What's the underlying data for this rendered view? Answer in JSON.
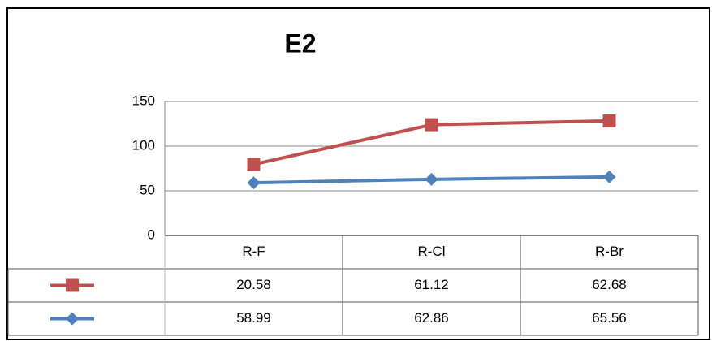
{
  "chart_data": {
    "type": "line",
    "stacked": true,
    "title": "E2",
    "categories": [
      "R-F",
      "R-Cl",
      "R-Br"
    ],
    "series": [
      {
        "color": "#4f81bd",
        "marker": "diamond",
        "values": [
          58.99,
          62.86,
          65.56
        ]
      },
      {
        "color": "#c0504d",
        "marker": "square",
        "values": [
          20.58,
          61.12,
          62.68
        ]
      }
    ],
    "ylim": [
      0,
      150
    ],
    "yticks": [
      0,
      50,
      100,
      150
    ],
    "grid": true,
    "data_table": true
  }
}
